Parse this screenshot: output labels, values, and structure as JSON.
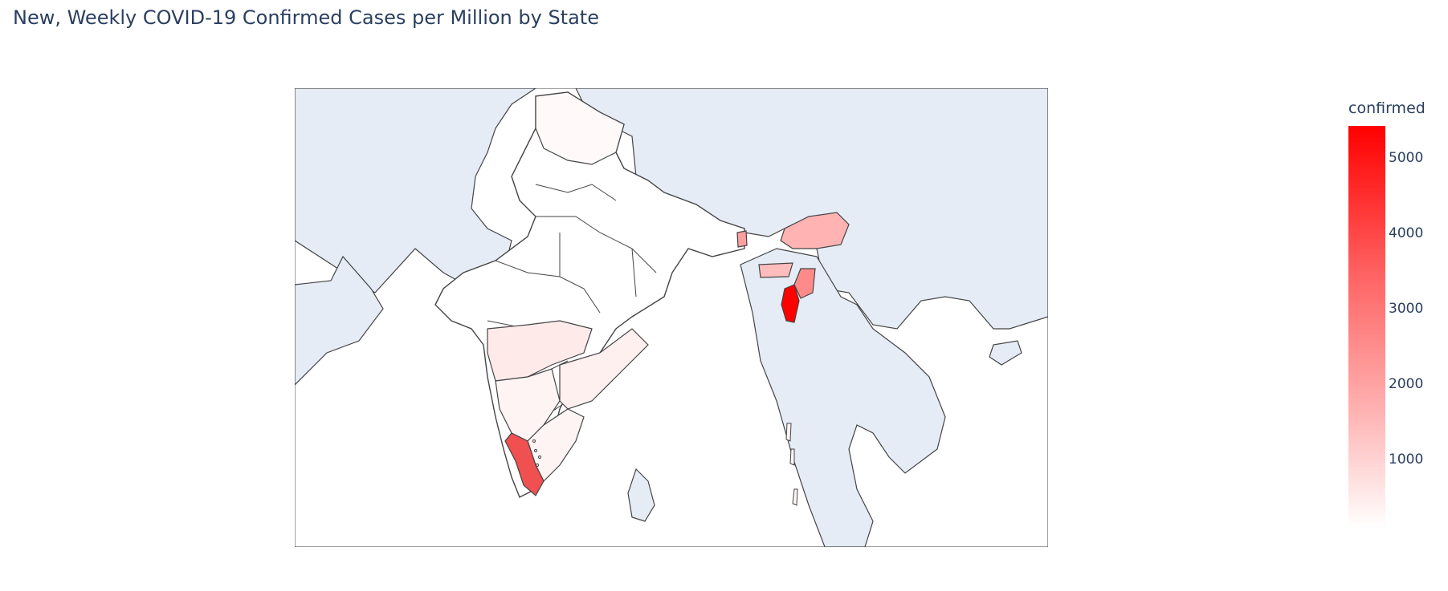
{
  "title": "New, Weekly COVID-19 Confirmed Cases per Million by State",
  "colorbar": {
    "title": "confirmed",
    "ticks": [
      "5000",
      "4000",
      "3000",
      "2000",
      "1000"
    ],
    "colors": [
      "#ff0000",
      "#ffffff"
    ],
    "range": [
      100,
      5400
    ]
  },
  "map": {
    "land_color": "#e5ecf6",
    "border_color": "#444444",
    "regions": [
      {
        "name": "Mizoram",
        "value": 5400
      },
      {
        "name": "Kerala",
        "value": 3900
      },
      {
        "name": "Manipur",
        "value": 2700
      },
      {
        "name": "Sikkim",
        "value": 2300
      },
      {
        "name": "Arunachal Pradesh",
        "value": 1700
      },
      {
        "name": "Meghalaya",
        "value": 1500
      },
      {
        "name": "Maharashtra",
        "value": 500
      },
      {
        "name": "Andhra Pradesh",
        "value": 400
      },
      {
        "name": "Tamil Nadu",
        "value": 300
      },
      {
        "name": "Karnataka",
        "value": 300
      },
      {
        "name": "Jammu and Kashmir",
        "value": 200
      }
    ]
  }
}
